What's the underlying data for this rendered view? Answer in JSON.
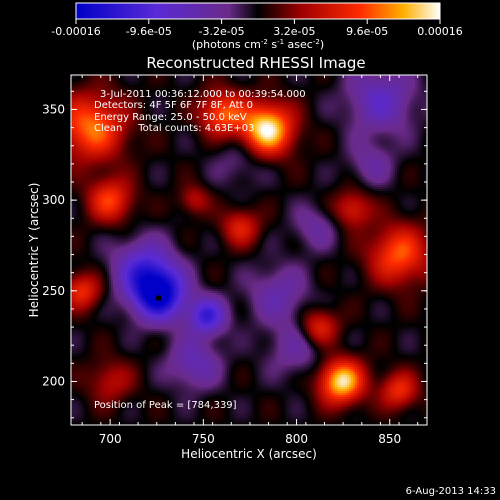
{
  "chart_data": {
    "type": "heatmap",
    "title": "Reconstructed RHESSI Image",
    "xlabel": "Heliocentric X (arcsec)",
    "ylabel": "Heliocentric Y (arcsec)",
    "xlim": [
      679,
      870
    ],
    "ylim": [
      176,
      369
    ],
    "xticks": [
      700,
      750,
      800,
      850
    ],
    "yticks": [
      200,
      250,
      300,
      350
    ],
    "colorbar": {
      "range": [
        -0.00016,
        0.00016
      ],
      "ticks": [
        "-0.00016",
        "-9.6e-05",
        "-3.2e-05",
        "3.2e-05",
        "9.6e-05",
        "0.00016"
      ],
      "tick_values": [
        -0.00016,
        -9.6e-05,
        -3.2e-05,
        3.2e-05,
        9.6e-05,
        0.00016
      ],
      "unit_label": "(photons cm",
      "unit_sup1": "-2",
      "unit_mid": " s",
      "unit_sup2": "-1",
      "unit_mid2": " asec",
      "unit_sup3": "-2",
      "unit_close": ")"
    },
    "annotations": [
      "3-Jul-2011 00:36:12.000 to 00:39:54.000",
      "Detectors: 4F 5F 6F 7F 8F, Att 0",
      "Energy Range: 25.0 - 50.0 keV",
      "Clean     Total counts: 4.63E+03"
    ],
    "peak_label": "Position of Peak = [784,339]",
    "marker": {
      "x": 726,
      "y": 246
    },
    "blobs": [
      {
        "x": 726,
        "y": 248,
        "r": 14,
        "v": -0.00016
      },
      {
        "x": 752,
        "y": 236,
        "r": 10,
        "v": -0.00011
      },
      {
        "x": 718,
        "y": 262,
        "r": 16,
        "v": -9e-05
      },
      {
        "x": 745,
        "y": 210,
        "r": 14,
        "v": -6e-05
      },
      {
        "x": 790,
        "y": 248,
        "r": 16,
        "v": -5e-05
      },
      {
        "x": 810,
        "y": 285,
        "r": 12,
        "v": -4e-05
      },
      {
        "x": 845,
        "y": 355,
        "r": 18,
        "v": -7e-05
      },
      {
        "x": 800,
        "y": 218,
        "r": 16,
        "v": -4e-05
      },
      {
        "x": 770,
        "y": 322,
        "r": 14,
        "v": -3e-05
      },
      {
        "x": 840,
        "y": 320,
        "r": 12,
        "v": -4e-05
      },
      {
        "x": 784,
        "y": 339,
        "r": 14,
        "v": 0.00016
      },
      {
        "x": 760,
        "y": 348,
        "r": 12,
        "v": 0.0001
      },
      {
        "x": 824,
        "y": 200,
        "r": 12,
        "v": 0.00015
      },
      {
        "x": 812,
        "y": 230,
        "r": 10,
        "v": 8e-05
      },
      {
        "x": 690,
        "y": 340,
        "r": 18,
        "v": 0.00011
      },
      {
        "x": 700,
        "y": 300,
        "r": 12,
        "v": 9e-05
      },
      {
        "x": 685,
        "y": 250,
        "r": 10,
        "v": 8e-05
      },
      {
        "x": 855,
        "y": 270,
        "r": 16,
        "v": 0.0001
      },
      {
        "x": 830,
        "y": 295,
        "r": 10,
        "v": 7e-05
      },
      {
        "x": 770,
        "y": 285,
        "r": 10,
        "v": 7e-05
      },
      {
        "x": 745,
        "y": 300,
        "r": 8,
        "v": 5e-05
      },
      {
        "x": 700,
        "y": 200,
        "r": 12,
        "v": 5e-05
      },
      {
        "x": 855,
        "y": 195,
        "r": 10,
        "v": 8e-05
      }
    ]
  },
  "footer": {
    "date": "6-Aug-2013 14:33"
  }
}
